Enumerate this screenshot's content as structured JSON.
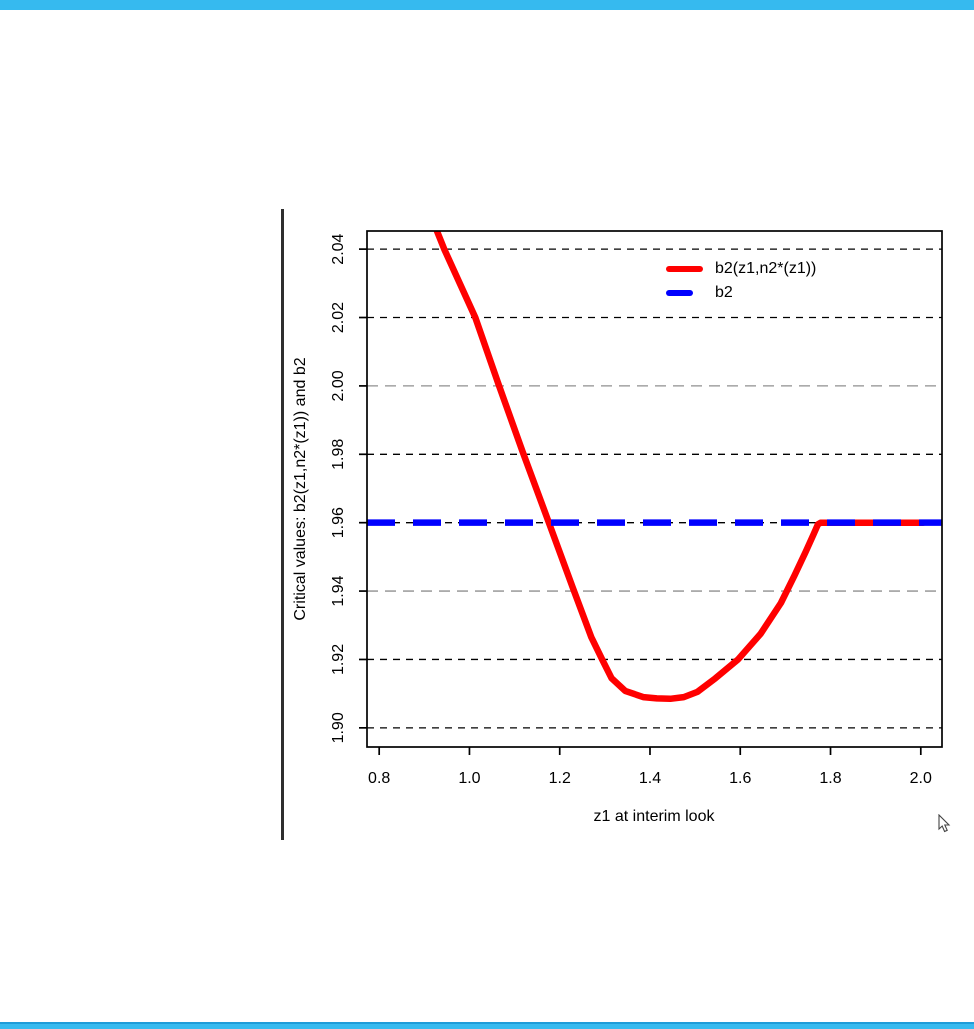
{
  "window": {
    "top_bar_color": "#36BAEF",
    "bottom_bar_color": "#36BAEF",
    "bottom_line_color": "#1E9CD8"
  },
  "icons": {
    "cursor": "arrow-pointer-icon"
  },
  "chart_data": {
    "type": "line",
    "title": "",
    "xlabel": "z1 at interim look",
    "ylabel": "Critical values: b2(z1,n2*(z1)) and b2",
    "xlim": [
      0.773,
      2.047
    ],
    "ylim": [
      1.8944,
      2.0453
    ],
    "grid": "dashed horizontal at every y tick",
    "x_ticks": [
      0.8,
      1.0,
      1.2,
      1.4,
      1.6,
      1.8,
      2.0
    ],
    "x_tick_labels": [
      "0.8",
      "1.0",
      "1.2",
      "1.4",
      "1.6",
      "1.8",
      "2.0"
    ],
    "y_ticks": [
      1.9,
      1.92,
      1.94,
      1.96,
      1.98,
      2.0,
      2.02,
      2.04
    ],
    "y_tick_labels": [
      "1.90",
      "1.92",
      "1.94",
      "1.96",
      "1.98",
      "2.00",
      "2.02",
      "2.04"
    ],
    "y_gridlines": [
      {
        "y": 2.04,
        "color": "#000000"
      },
      {
        "y": 2.02,
        "color": "#000000"
      },
      {
        "y": 2.0,
        "color": "#8F8F8F"
      },
      {
        "y": 1.98,
        "color": "#000000"
      },
      {
        "y": 1.96,
        "color": "#000000"
      },
      {
        "y": 1.94,
        "color": "#8F8F8F"
      },
      {
        "y": 1.92,
        "color": "#000000"
      },
      {
        "y": 1.9,
        "color": "#000000"
      }
    ],
    "series": [
      {
        "name": "b2(z1,n2*(z1))",
        "type": "line",
        "style": "solid",
        "color": "#FF0000",
        "points": [
          [
            0.9,
            2.0545
          ],
          [
            0.944,
            2.04
          ],
          [
            1.013,
            2.02
          ],
          [
            1.063,
            2.001
          ],
          [
            1.117,
            1.981
          ],
          [
            1.176,
            1.96
          ],
          [
            1.229,
            1.941
          ],
          [
            1.27,
            1.9265
          ],
          [
            1.296,
            1.9195
          ],
          [
            1.315,
            1.9145
          ],
          [
            1.345,
            1.9108
          ],
          [
            1.385,
            1.909
          ],
          [
            1.415,
            1.9086
          ],
          [
            1.445,
            1.9085
          ],
          [
            1.475,
            1.909
          ],
          [
            1.505,
            1.9105
          ],
          [
            1.545,
            1.9145
          ],
          [
            1.595,
            1.92
          ],
          [
            1.645,
            1.9275
          ],
          [
            1.69,
            1.9365
          ],
          [
            1.72,
            1.9445
          ],
          [
            1.745,
            1.9515
          ],
          [
            1.762,
            1.9565
          ],
          [
            1.772,
            1.9595
          ],
          [
            1.778,
            1.96
          ],
          [
            2.005,
            1.96
          ]
        ]
      },
      {
        "name": "b2",
        "type": "hline",
        "style": "dashed",
        "color": "#0000FF",
        "y": 1.96
      }
    ],
    "legend": {
      "position": "top-right-inside",
      "entries": [
        {
          "label": "b2(z1,n2*(z1))",
          "color": "#FF0000",
          "style": "solid"
        },
        {
          "label": "b2",
          "color": "#0000FF",
          "style": "dashed"
        }
      ]
    }
  }
}
